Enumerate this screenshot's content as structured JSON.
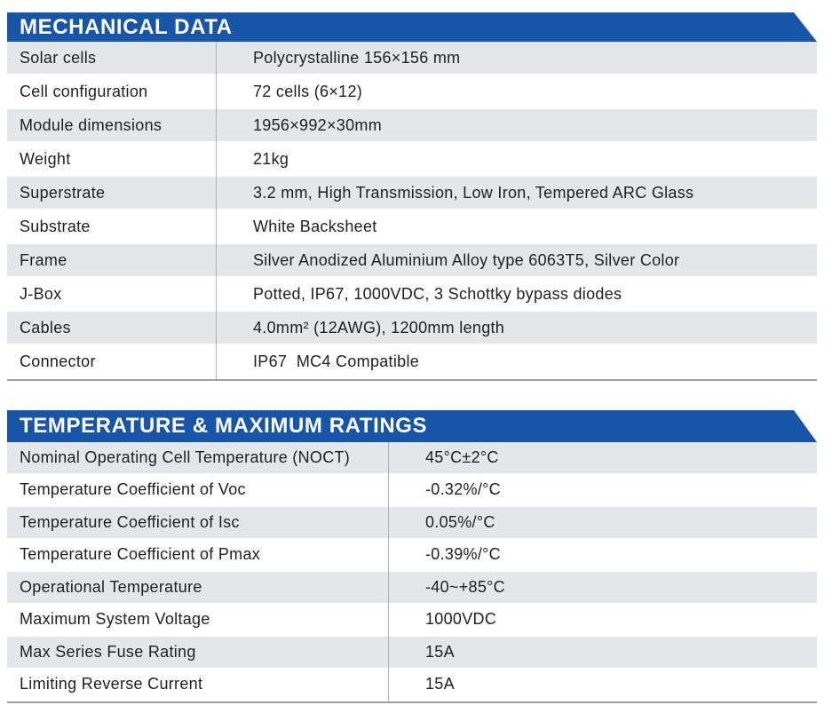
{
  "colors": {
    "header_blue": "#1655a8",
    "header_text": "#ffffff",
    "row_alt_gray": "#e3e7e9",
    "divider_line": "#abb2b6",
    "bottom_border": "#9aa0a3",
    "body_text": "#1f1f1f"
  },
  "tables": [
    {
      "title": "MECHANICAL DATA",
      "rows": [
        {
          "label": "Solar cells",
          "value": "Polycrystalline 156×156 mm"
        },
        {
          "label": "Cell configuration",
          "value": "72 cells (6×12)"
        },
        {
          "label": "Module dimensions",
          "value": "1956×992×30mm"
        },
        {
          "label": "Weight",
          "value": "21kg"
        },
        {
          "label": "Superstrate",
          "value": "3.2 mm, High Transmission, Low Iron, Tempered ARC Glass"
        },
        {
          "label": "Substrate",
          "value": "White Backsheet"
        },
        {
          "label": "Frame",
          "value": "Silver Anodized Aluminium Alloy type 6063T5, Silver Color"
        },
        {
          "label": "J-Box",
          "value": "Potted, IP67, 1000VDC, 3 Schottky bypass diodes"
        },
        {
          "label": "Cables",
          "value": "4.0mm² (12AWG), 1200mm length"
        },
        {
          "label": "Connector",
          "value": "IP67  MC4 Compatible"
        }
      ]
    },
    {
      "title": "TEMPERATURE & MAXIMUM RATINGS",
      "rows": [
        {
          "label": "Nominal Operating Cell Temperature (NOCT)",
          "value": "45°C±2°C"
        },
        {
          "label": "Temperature Coefficient of Voc",
          "value": "-0.32%/°C"
        },
        {
          "label": "Temperature Coefficient of Isc",
          "value": "0.05%/°C"
        },
        {
          "label": "Temperature Coefficient of Pmax",
          "value": "-0.39%/°C"
        },
        {
          "label": "Operational Temperature",
          "value": "-40~+85°C"
        },
        {
          "label": "Maximum System Voltage",
          "value": "1000VDC"
        },
        {
          "label": "Max Series Fuse Rating",
          "value": "15A"
        },
        {
          "label": "Limiting Reverse Current",
          "value": "15A"
        }
      ]
    }
  ]
}
